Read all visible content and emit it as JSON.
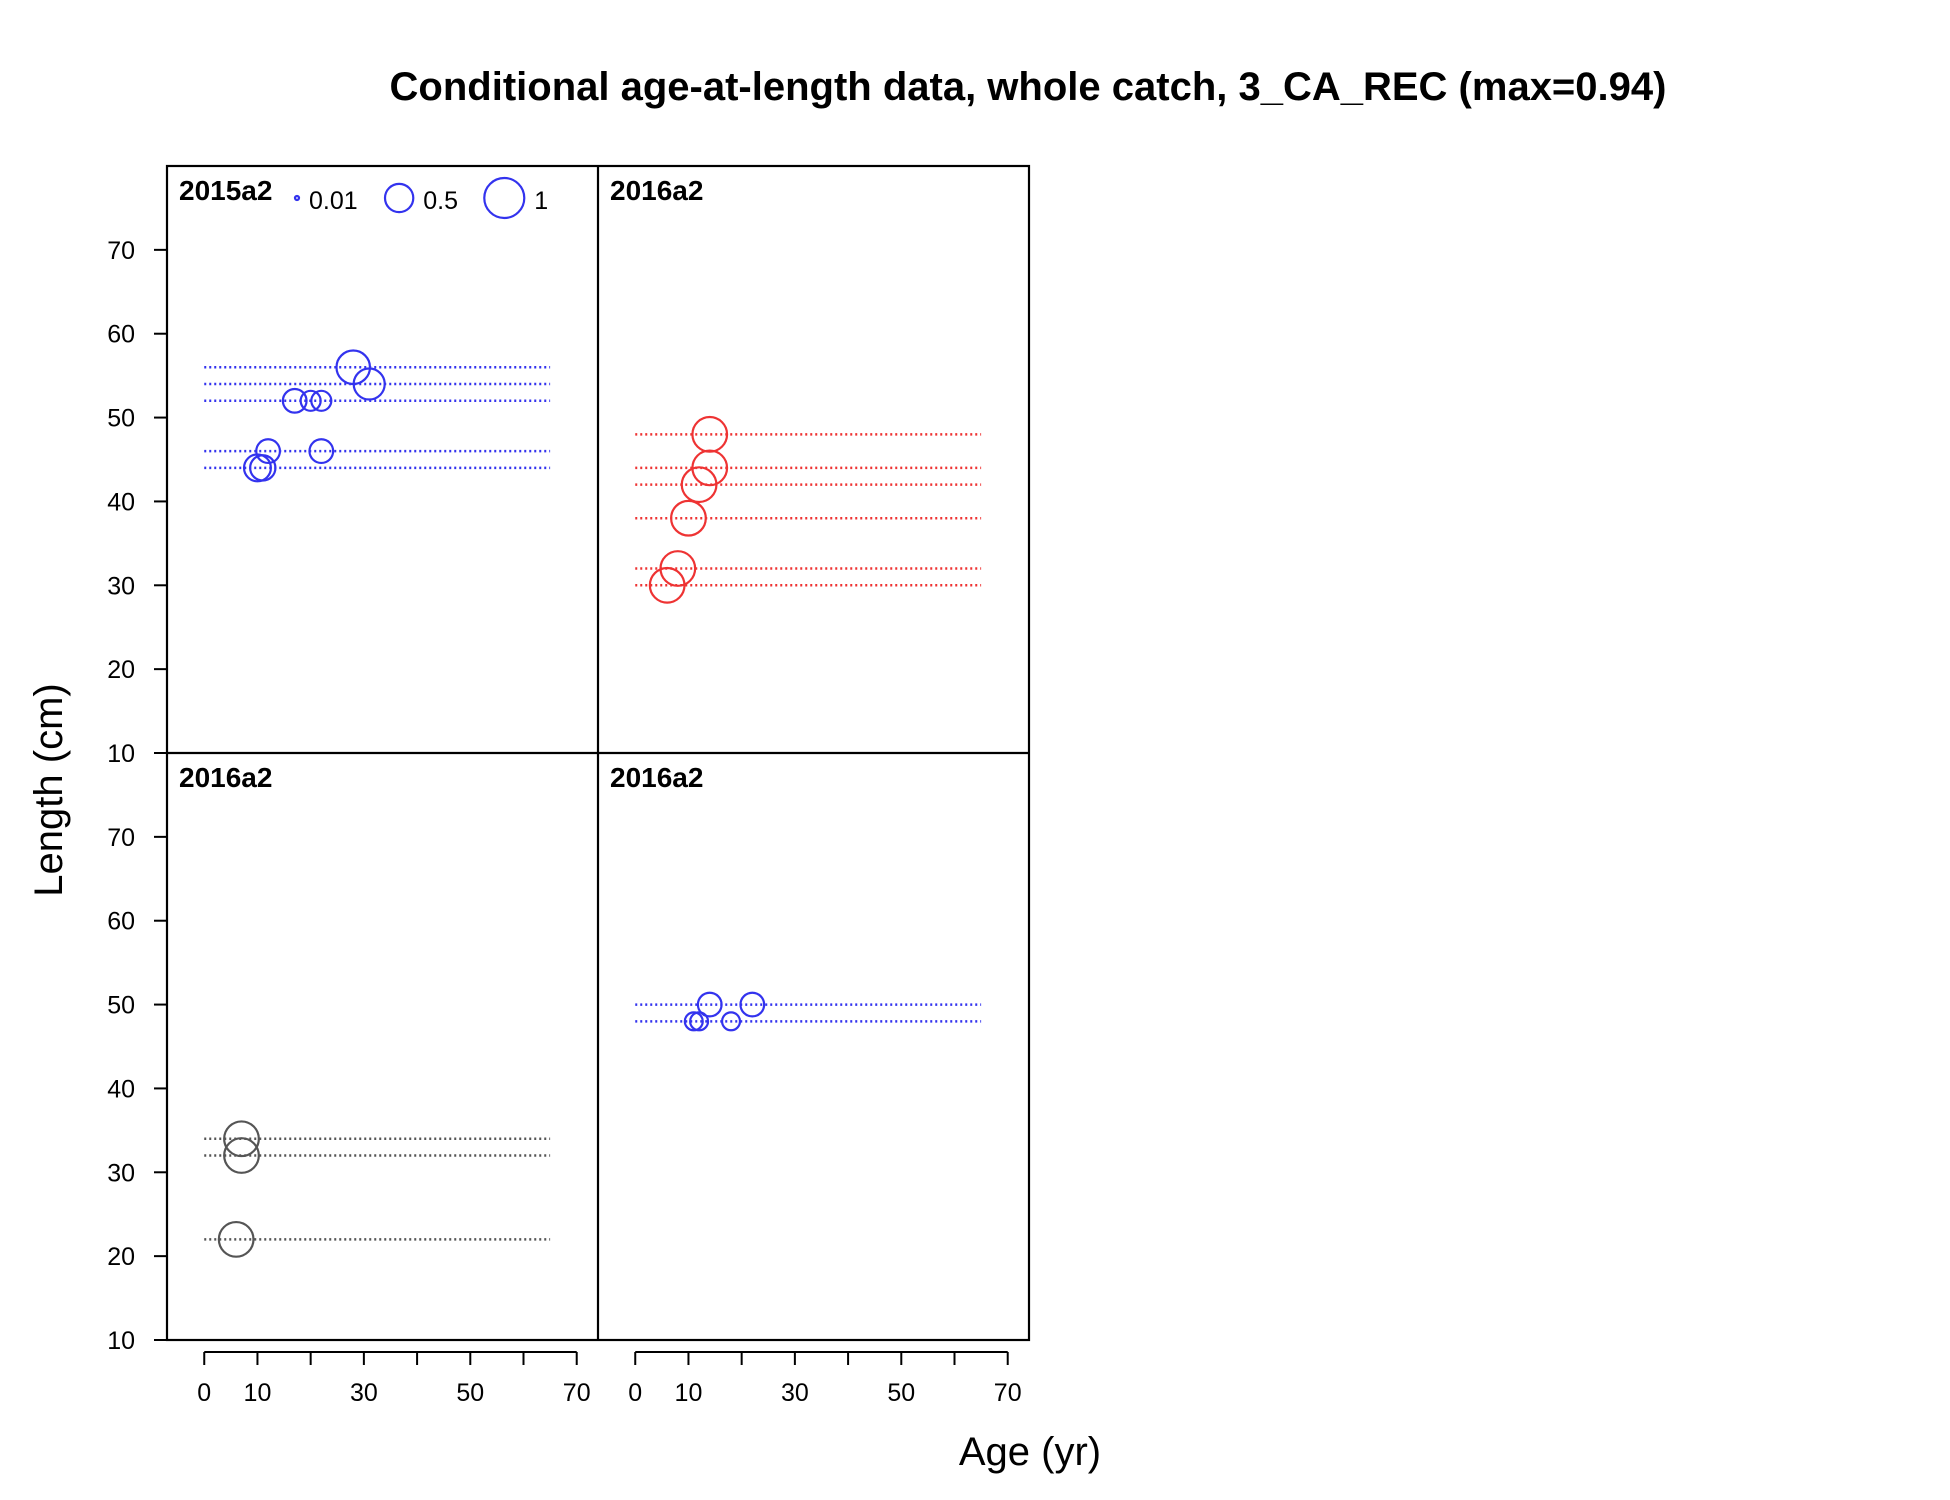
{
  "chart_data": {
    "type": "scatter",
    "title": "Conditional age-at-length data, whole catch, 3_CA_REC (max=0.94)",
    "xlabel": "Age (yr)",
    "ylabel": "Length (cm)",
    "xlim": [
      -7,
      74
    ],
    "ylim": [
      10,
      80
    ],
    "x_ticks": [
      0,
      10,
      20,
      30,
      40,
      50,
      60,
      70
    ],
    "x_tick_labels": [
      "0",
      "10",
      "30",
      "50",
      "70"
    ],
    "y_tick_labels": [
      "10",
      "20",
      "30",
      "40",
      "50",
      "60",
      "70"
    ],
    "guide_line_x_range": [
      0,
      65
    ],
    "legend": {
      "position": "top-left",
      "color": "#3333ee",
      "entries": [
        {
          "label": "0.01",
          "value": 0.01
        },
        {
          "label": "0.5",
          "value": 0.5
        },
        {
          "label": "1",
          "value": 1
        }
      ]
    },
    "panels": [
      {
        "label": "2015a2",
        "color": "#3333ee",
        "lengths": [
          44,
          46,
          52,
          54,
          56
        ],
        "points": [
          {
            "age": 10,
            "length": 44,
            "prop": 0.45
          },
          {
            "age": 11,
            "length": 44,
            "prop": 0.4
          },
          {
            "age": 12,
            "length": 46,
            "prop": 0.35
          },
          {
            "age": 22,
            "length": 46,
            "prop": 0.35
          },
          {
            "age": 17,
            "length": 52,
            "prop": 0.35
          },
          {
            "age": 20,
            "length": 52,
            "prop": 0.25
          },
          {
            "age": 22,
            "length": 52,
            "prop": 0.25
          },
          {
            "age": 31,
            "length": 54,
            "prop": 0.6
          },
          {
            "age": 28,
            "length": 56,
            "prop": 0.7
          }
        ]
      },
      {
        "label": "2016a2",
        "color": "#ee3333",
        "lengths": [
          30,
          32,
          38,
          42,
          44,
          48
        ],
        "points": [
          {
            "age": 6,
            "length": 30,
            "prop": 0.75
          },
          {
            "age": 8,
            "length": 32,
            "prop": 0.75
          },
          {
            "age": 10,
            "length": 38,
            "prop": 0.75
          },
          {
            "age": 12,
            "length": 42,
            "prop": 0.75
          },
          {
            "age": 14,
            "length": 44,
            "prop": 0.75
          },
          {
            "age": 14,
            "length": 48,
            "prop": 0.75
          }
        ]
      },
      {
        "label": "2016a2",
        "color": "#555555",
        "lengths": [
          22,
          32,
          34
        ],
        "points": [
          {
            "age": 6,
            "length": 22,
            "prop": 0.75
          },
          {
            "age": 7,
            "length": 32,
            "prop": 0.75
          },
          {
            "age": 7,
            "length": 34,
            "prop": 0.75
          }
        ]
      },
      {
        "label": "2016a2",
        "color": "#3333ee",
        "lengths": [
          48,
          50
        ],
        "points": [
          {
            "age": 11,
            "length": 48,
            "prop": 0.2
          },
          {
            "age": 12,
            "length": 48,
            "prop": 0.2
          },
          {
            "age": 18,
            "length": 48,
            "prop": 0.2
          },
          {
            "age": 14,
            "length": 50,
            "prop": 0.35
          },
          {
            "age": 22,
            "length": 50,
            "prop": 0.35
          }
        ]
      }
    ]
  }
}
